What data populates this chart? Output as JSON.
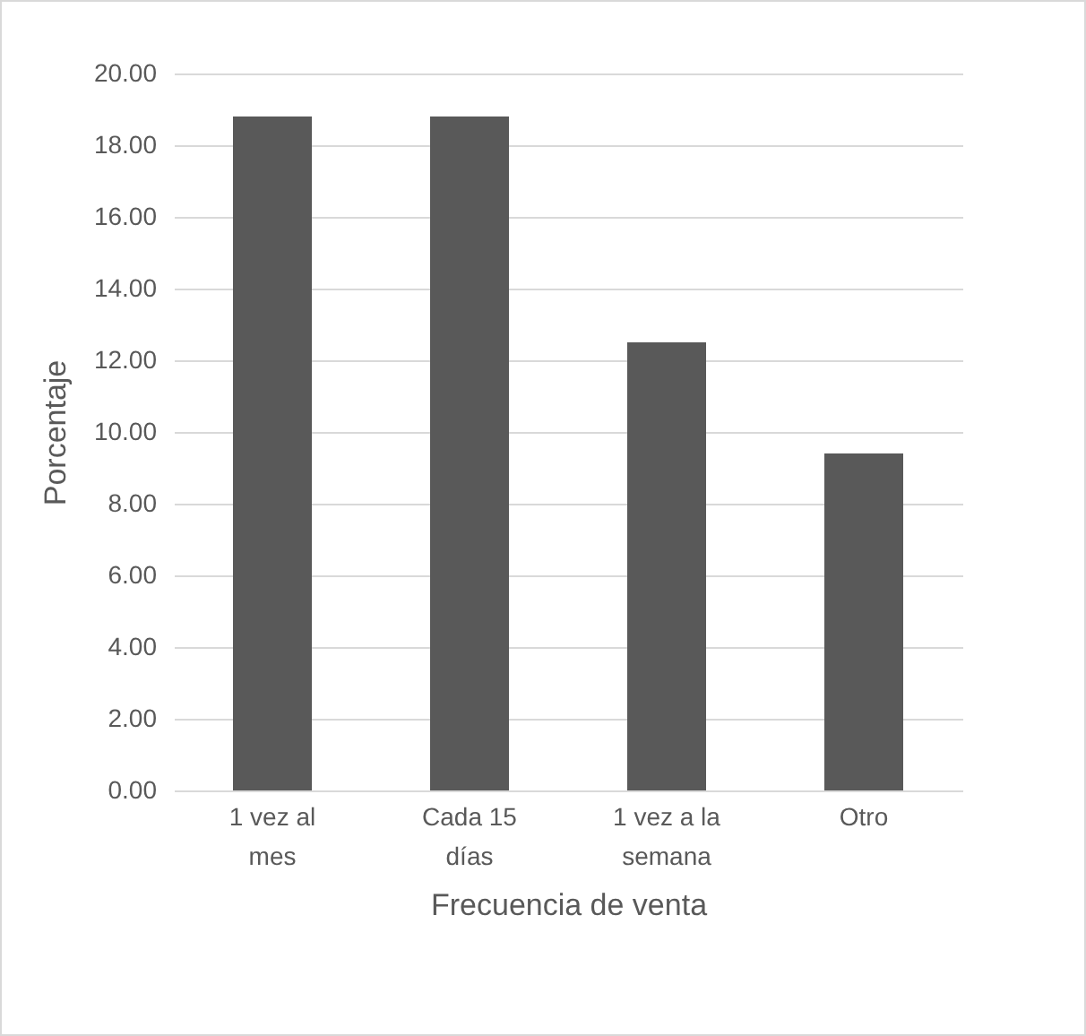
{
  "chart_data": {
    "type": "bar",
    "xlabel": "Frecuencia de venta",
    "ylabel": "Porcentaje",
    "categories": [
      "1 vez al mes",
      "Cada 15 días",
      "1 vez a la semana",
      "Otro"
    ],
    "values": [
      18.8,
      18.8,
      12.5,
      9.4
    ],
    "color": "#595959",
    "ylim": [
      0,
      20
    ],
    "yticks": [
      {
        "value": 0,
        "label": "0.00"
      },
      {
        "value": 2,
        "label": "2.00"
      },
      {
        "value": 4,
        "label": "4.00"
      },
      {
        "value": 6,
        "label": "6.00"
      },
      {
        "value": 8,
        "label": "8.00"
      },
      {
        "value": 10,
        "label": "10.00"
      },
      {
        "value": 12,
        "label": "12.00"
      },
      {
        "value": 14,
        "label": "14.00"
      },
      {
        "value": 16,
        "label": "16.00"
      },
      {
        "value": 18,
        "label": "18.00"
      },
      {
        "value": 20,
        "label": "20.00"
      }
    ],
    "grid": "y"
  }
}
